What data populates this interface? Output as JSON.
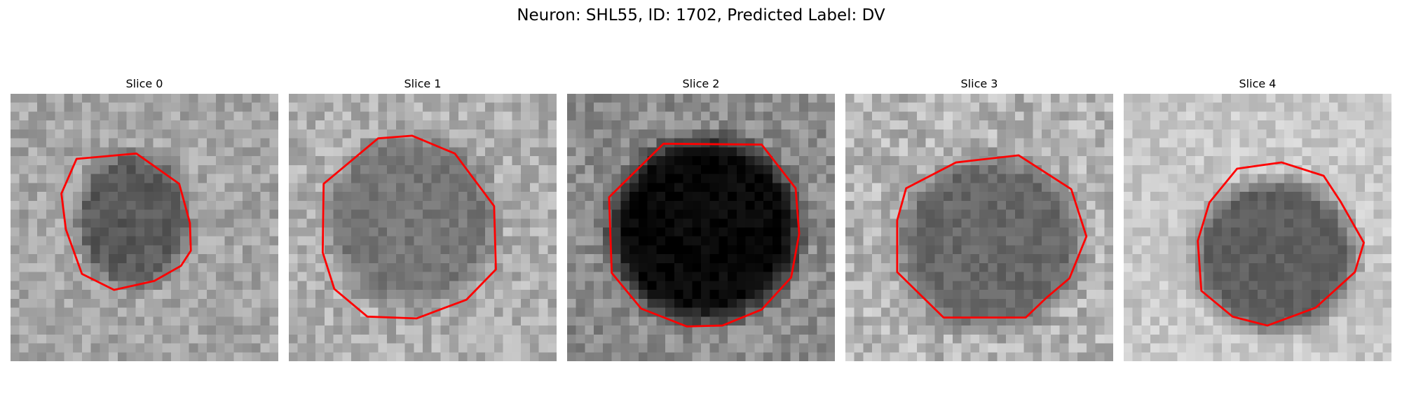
{
  "figure": {
    "title": "Neuron: SHL55, ID: 1702, Predicted Label: DV"
  },
  "outline_color": "#ff0000",
  "panels": [
    {
      "title": "Slice 0",
      "mean_gray": 165,
      "blob_gray": 40,
      "blob_fraction": 0.6,
      "noise": 55,
      "seed": 11
    },
    {
      "title": "Slice 1",
      "mean_gray": 175,
      "blob_gray": 95,
      "blob_fraction": 0.7,
      "noise": 60,
      "seed": 23
    },
    {
      "title": "Slice 2",
      "mean_gray": 140,
      "blob_gray": 8,
      "blob_fraction": 1.0,
      "noise": 60,
      "seed": 37
    },
    {
      "title": "Slice 3",
      "mean_gray": 180,
      "blob_gray": 95,
      "blob_fraction": 0.9,
      "noise": 70,
      "seed": 41
    },
    {
      "title": "Slice 4",
      "mean_gray": 200,
      "blob_gray": 60,
      "blob_fraction": 0.75,
      "noise": 45,
      "seed": 53
    }
  ]
}
